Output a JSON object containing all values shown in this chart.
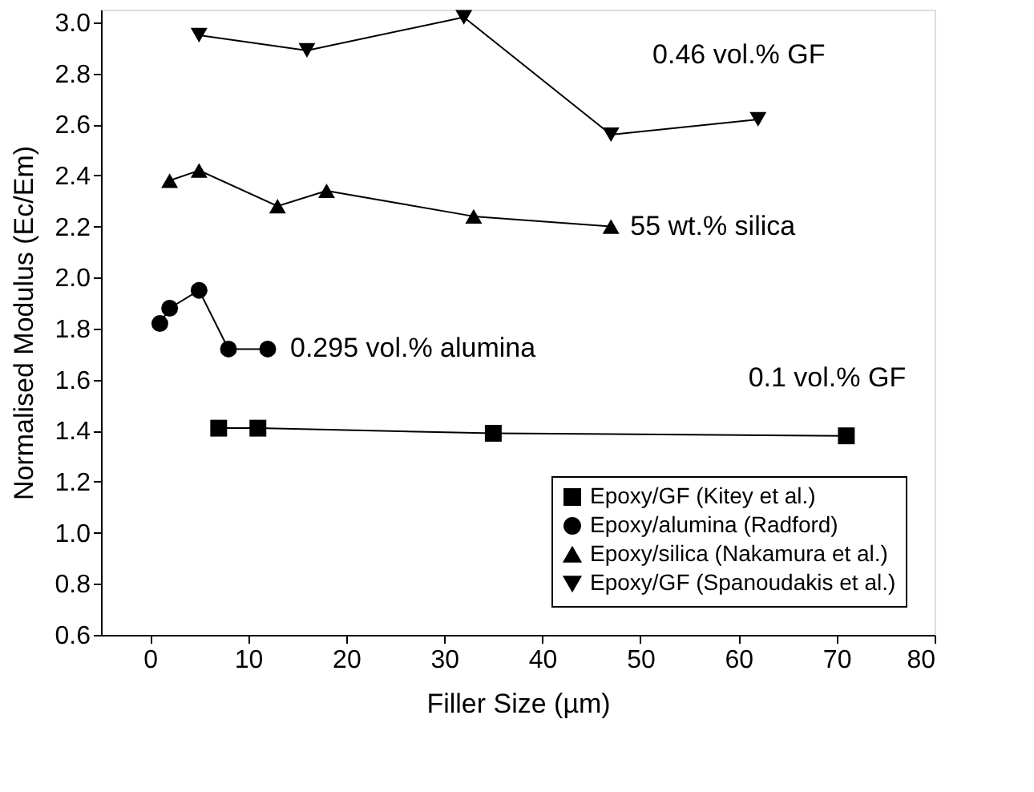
{
  "chart_data": {
    "type": "line",
    "xlabel": "Filler Size (µm)",
    "ylabel": "Normalised Modulus (Ec/Em)",
    "xlim": [
      -5,
      80
    ],
    "xticks": [
      0,
      10,
      20,
      30,
      40,
      50,
      60,
      70,
      80
    ],
    "ylim": [
      0.6,
      3.05
    ],
    "yticks": [
      0.6,
      0.8,
      {
        "value": 1,
        "label": "1.0"
      },
      1.2,
      1.4,
      1.6,
      1.8,
      {
        "value": 2,
        "label": "2.0"
      },
      2.2,
      2.4,
      2.6,
      2.8,
      {
        "value": 3,
        "label": "3.0"
      }
    ],
    "grid": false,
    "legend": "bottom right",
    "line_style": "solid",
    "series": [
      {
        "name": "Epoxy/GF (Kitey et al.)",
        "color": "#000000",
        "marker": "square",
        "x": [
          7,
          11,
          35,
          71
        ],
        "values": [
          1.41,
          1.41,
          1.39,
          1.38
        ]
      },
      {
        "name": "Epoxy/alumina (Radford)",
        "color": "#000000",
        "marker": "circle",
        "x": [
          1,
          2,
          5,
          8,
          12
        ],
        "values": [
          1.82,
          1.88,
          1.95,
          1.72,
          1.72
        ]
      },
      {
        "name": "Epoxy/silica (Nakamura et al.)",
        "color": "#000000",
        "marker": "triangle",
        "x": [
          2,
          5,
          13,
          18,
          33,
          47
        ],
        "values": [
          2.38,
          2.42,
          2.28,
          2.34,
          2.24,
          2.2
        ]
      },
      {
        "name": "Epoxy/GF (Spanoudakis et al.)",
        "color": "#000000",
        "marker": "triangle-down",
        "x": [
          5,
          16,
          32,
          47,
          62
        ],
        "values": [
          2.95,
          2.89,
          3.02,
          2.56,
          2.62
        ]
      }
    ],
    "annotations": [
      {
        "text": "0.46 vol.% GF",
        "x": 62,
        "y": 2.62
      },
      {
        "text": "55 wt.% silica",
        "x": 47,
        "y": 2.2
      },
      {
        "text": "0.295 vol.% alumina",
        "x": 12,
        "y": 1.72
      },
      {
        "text": "0.1 vol.% GF",
        "x": 71,
        "y": 1.38
      }
    ]
  }
}
